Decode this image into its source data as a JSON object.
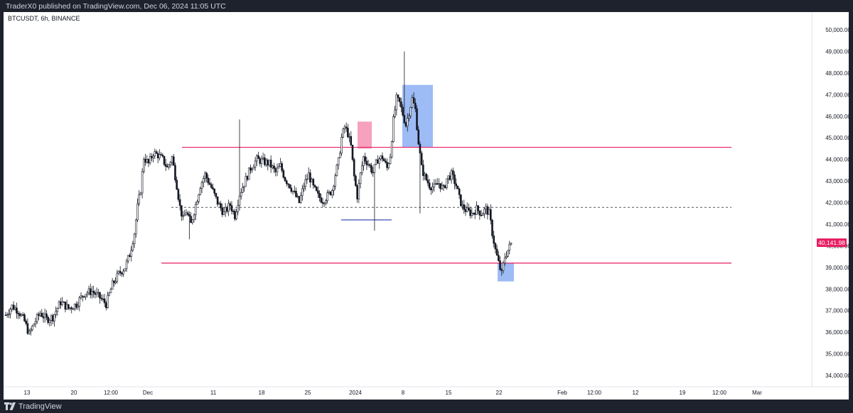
{
  "header": {
    "publish_text": "TraderX0 published on TradingView.com, Dec 06, 2024 11:05 UTC"
  },
  "footer": {
    "brand": "TradingView"
  },
  "chart_data": {
    "type": "candlestick",
    "symbol_label": "BTCUSDT, 6h, BINANCE",
    "y_ticks": [
      "34,000.00",
      "35,000.00",
      "36,000.00",
      "37,000.00",
      "38,000.00",
      "39,000.00",
      "40,000.00",
      "41,000.00",
      "42,000.00",
      "43,000.00",
      "44,000.00",
      "45,000.00",
      "46,000.00",
      "47,000.00",
      "48,000.00",
      "49,000.00",
      "50,000.00"
    ],
    "ylim": [
      33700,
      50400
    ],
    "x_ticks": [
      "13",
      "20",
      "12:00",
      "Dec",
      "11",
      "18",
      "25",
      "2024",
      "8",
      "15",
      "22",
      "Feb",
      "12:00",
      "12",
      "19",
      "12:00",
      "Mar"
    ],
    "last_price": {
      "label": "40,141.98",
      "value": 40141.98,
      "color": "#e91e63"
    },
    "levels": [
      {
        "kind": "resistance",
        "value": 44560,
        "color": "#e91e63"
      },
      {
        "kind": "support",
        "value": 39200,
        "color": "#e91e63"
      },
      {
        "kind": "dashed",
        "value": 41780,
        "color": "#555555"
      },
      {
        "kind": "marker",
        "value": 41200,
        "color": "#3f51b5"
      }
    ],
    "highlight_boxes": [
      {
        "color": "#f06292",
        "y_top": 45750,
        "y_bottom": 44500
      },
      {
        "color": "#5c8def",
        "y_top": 47450,
        "y_bottom": 44560
      },
      {
        "color": "#5c8def",
        "y_top": 39200,
        "y_bottom": 38350
      }
    ],
    "price_path": [
      [
        0,
        36800
      ],
      [
        8,
        37200
      ],
      [
        16,
        37000
      ],
      [
        24,
        36500
      ],
      [
        30,
        35900
      ],
      [
        36,
        36400
      ],
      [
        44,
        36900
      ],
      [
        52,
        36600
      ],
      [
        60,
        36700
      ],
      [
        70,
        37400
      ],
      [
        80,
        37100
      ],
      [
        90,
        37300
      ],
      [
        100,
        37800
      ],
      [
        110,
        37900
      ],
      [
        120,
        37600
      ],
      [
        128,
        37300
      ],
      [
        136,
        38200
      ],
      [
        144,
        38700
      ],
      [
        152,
        39000
      ],
      [
        158,
        39600
      ],
      [
        164,
        40600
      ],
      [
        168,
        41800
      ],
      [
        172,
        42600
      ],
      [
        176,
        44100
      ],
      [
        182,
        43800
      ],
      [
        188,
        44300
      ],
      [
        194,
        44200
      ],
      [
        200,
        44000
      ],
      [
        206,
        43600
      ],
      [
        212,
        44100
      ],
      [
        218,
        42800
      ],
      [
        222,
        41800
      ],
      [
        226,
        41200
      ],
      [
        230,
        41600
      ],
      [
        236,
        41000
      ],
      [
        242,
        41900
      ],
      [
        248,
        42800
      ],
      [
        254,
        43300
      ],
      [
        262,
        42700
      ],
      [
        270,
        42000
      ],
      [
        278,
        41500
      ],
      [
        286,
        41900
      ],
      [
        292,
        41400
      ],
      [
        298,
        42400
      ],
      [
        304,
        42900
      ],
      [
        312,
        43600
      ],
      [
        320,
        44000
      ],
      [
        328,
        43900
      ],
      [
        336,
        43800
      ],
      [
        344,
        43400
      ],
      [
        350,
        43700
      ],
      [
        356,
        43100
      ],
      [
        362,
        42800
      ],
      [
        368,
        42400
      ],
      [
        374,
        42000
      ],
      [
        380,
        42800
      ],
      [
        386,
        43300
      ],
      [
        392,
        42700
      ],
      [
        398,
        42300
      ],
      [
        404,
        42100
      ],
      [
        410,
        42300
      ],
      [
        416,
        42600
      ],
      [
        420,
        43300
      ],
      [
        424,
        43900
      ],
      [
        428,
        45000
      ],
      [
        432,
        45500
      ],
      [
        436,
        45200
      ],
      [
        440,
        44600
      ],
      [
        444,
        43200
      ],
      [
        448,
        42300
      ],
      [
        452,
        43300
      ],
      [
        456,
        44100
      ],
      [
        462,
        43800
      ],
      [
        468,
        43400
      ],
      [
        474,
        44000
      ],
      [
        480,
        44100
      ],
      [
        486,
        43600
      ],
      [
        490,
        44200
      ],
      [
        494,
        45800
      ],
      [
        498,
        46800
      ],
      [
        502,
        46600
      ],
      [
        506,
        46100
      ],
      [
        510,
        45600
      ],
      [
        514,
        46200
      ],
      [
        518,
        46800
      ],
      [
        522,
        46300
      ],
      [
        526,
        44800
      ],
      [
        530,
        43600
      ],
      [
        534,
        43200
      ],
      [
        540,
        42800
      ],
      [
        546,
        42700
      ],
      [
        552,
        42900
      ],
      [
        558,
        42600
      ],
      [
        562,
        43100
      ],
      [
        568,
        43300
      ],
      [
        574,
        42800
      ],
      [
        578,
        42200
      ],
      [
        582,
        41800
      ],
      [
        588,
        41600
      ],
      [
        594,
        41500
      ],
      [
        600,
        41700
      ],
      [
        606,
        41500
      ],
      [
        612,
        41700
      ],
      [
        616,
        41500
      ],
      [
        620,
        40600
      ],
      [
        624,
        39800
      ],
      [
        628,
        39200
      ],
      [
        632,
        38700
      ],
      [
        636,
        39500
      ],
      [
        640,
        39800
      ],
      [
        644,
        40100
      ]
    ]
  }
}
